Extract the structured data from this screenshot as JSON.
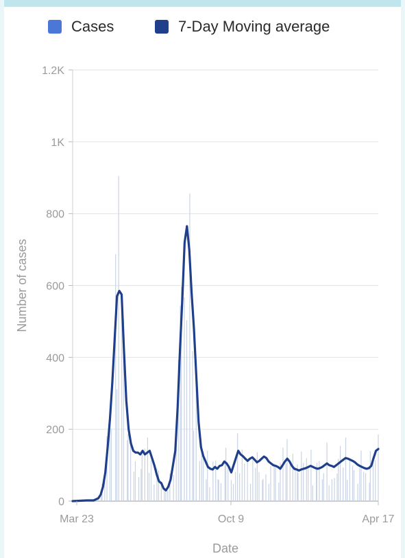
{
  "legend": {
    "cases_label": "Cases",
    "avg_label": "7-Day Moving average"
  },
  "colors": {
    "cases": "#4a77d8",
    "moving_average": "#1f3f8a",
    "case_bars": "#c9d3e4",
    "grid": "#e6e6e6",
    "axis_text": "#9a9a9a"
  },
  "chart_data": {
    "type": "line",
    "xlabel": "Date",
    "ylabel": "Number of cases",
    "xticks": [
      "Mar 23",
      "Oct 9",
      "Apr 17"
    ],
    "yticks": [
      "0",
      "200",
      "400",
      "600",
      "800",
      "1K",
      "1.2K"
    ],
    "ylim": [
      0,
      1200
    ],
    "grid": true,
    "legend_position": "top",
    "series": [
      {
        "name": "7-Day Moving average",
        "x": [
          0,
          15,
          30,
          45,
          55,
          60,
          65,
          70,
          75,
          80,
          85,
          90,
          95,
          100,
          105,
          110,
          115,
          120,
          125,
          130,
          135,
          140,
          145,
          150,
          155,
          160,
          165,
          170,
          175,
          180,
          185,
          190,
          195,
          200,
          205,
          210,
          215,
          220,
          225,
          230,
          235,
          240,
          245,
          250,
          255,
          260,
          265,
          270,
          275,
          280,
          285,
          290,
          295,
          300,
          305,
          310,
          315,
          320,
          325,
          330,
          335,
          340,
          345,
          350,
          355,
          360,
          365,
          370,
          375,
          380,
          385,
          390,
          395,
          400,
          405,
          410,
          415,
          420,
          425,
          430,
          435,
          440,
          445,
          450,
          455,
          460,
          465,
          470,
          475,
          480,
          485,
          490,
          495,
          500,
          505,
          510,
          515,
          520,
          525,
          530,
          535,
          540,
          545,
          550,
          555,
          560,
          565,
          570,
          575,
          580,
          585,
          590,
          595,
          600,
          605,
          610,
          615,
          620,
          625,
          630,
          635,
          640,
          645,
          650,
          655
        ],
        "values": [
          0,
          1,
          2,
          2,
          8,
          18,
          40,
          80,
          150,
          230,
          330,
          450,
          570,
          585,
          575,
          420,
          280,
          200,
          160,
          140,
          135,
          135,
          130,
          140,
          130,
          135,
          140,
          120,
          100,
          75,
          55,
          50,
          35,
          30,
          40,
          60,
          100,
          140,
          260,
          420,
          560,
          720,
          765,
          700,
          580,
          480,
          350,
          220,
          150,
          125,
          110,
          95,
          90,
          88,
          95,
          90,
          98,
          100,
          110,
          105,
          95,
          80,
          100,
          120,
          140,
          130,
          125,
          118,
          112,
          118,
          122,
          115,
          108,
          112,
          118,
          124,
          120,
          110,
          105,
          100,
          98,
          95,
          90,
          100,
          110,
          118,
          110,
          98,
          90,
          88,
          85,
          88,
          90,
          92,
          95,
          98,
          95,
          92,
          90,
          92,
          95,
          100,
          105,
          100,
          98,
          95,
          100,
          105,
          110,
          115,
          120,
          118,
          115,
          112,
          108,
          102,
          98,
          95,
          92,
          90,
          92,
          98,
          120,
          140,
          145
        ]
      }
    ]
  }
}
